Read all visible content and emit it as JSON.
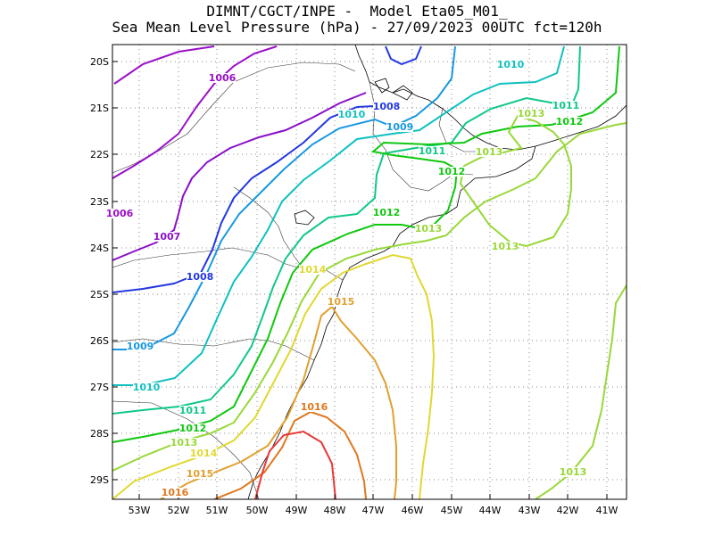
{
  "title": {
    "line1": "DIMNT/CGCT/INPE -  Model Eta05_M01_",
    "line2": "Sea Mean Level Pressure (hPa) - 27/09/2023 00UTC fct=120h"
  },
  "axes": {
    "lat_ticks": [
      "20S",
      "21S",
      "22S",
      "23S",
      "24S",
      "25S",
      "26S",
      "27S",
      "28S",
      "29S"
    ],
    "lon_ticks": [
      "53W",
      "52W",
      "51W",
      "50W",
      "49W",
      "48W",
      "47W",
      "46W",
      "45W",
      "44W",
      "43W",
      "42W",
      "41W"
    ]
  },
  "colors": {
    "c1006": "#9a10c8",
    "c1007": "#8a10c8",
    "c1008": "#2438e0",
    "c1009": "#1898e0",
    "c1010": "#10c0c0",
    "c1011": "#10c888",
    "c1012": "#10c810",
    "c1013": "#98d838",
    "c1014": "#e0d830",
    "c1015": "#e0a030",
    "c1016": "#e07820",
    "c1017": "#e83838",
    "coast": "#000000",
    "grid": "#888888"
  },
  "labels": [
    {
      "text": "1006",
      "color": "c1006"
    },
    {
      "text": "1006",
      "color": "c1006"
    },
    {
      "text": "1007",
      "color": "c1007"
    },
    {
      "text": "1008",
      "color": "c1008"
    },
    {
      "text": "1008",
      "color": "c1008"
    },
    {
      "text": "1009",
      "color": "c1009"
    },
    {
      "text": "1009",
      "color": "c1009"
    },
    {
      "text": "1010",
      "color": "c1010"
    },
    {
      "text": "1010",
      "color": "c1010"
    },
    {
      "text": "1010",
      "color": "c1010"
    },
    {
      "text": "1011",
      "color": "c1011"
    },
    {
      "text": "1011",
      "color": "c1011"
    },
    {
      "text": "1011",
      "color": "c1011"
    },
    {
      "text": "1012",
      "color": "c1012"
    },
    {
      "text": "1012",
      "color": "c1012"
    },
    {
      "text": "1012",
      "color": "c1012"
    },
    {
      "text": "1012",
      "color": "c1012"
    },
    {
      "text": "1013",
      "color": "c1013"
    },
    {
      "text": "1013",
      "color": "c1013"
    },
    {
      "text": "1013",
      "color": "c1013"
    },
    {
      "text": "1013",
      "color": "c1013"
    },
    {
      "text": "1013",
      "color": "c1013"
    },
    {
      "text": "1013",
      "color": "c1013"
    },
    {
      "text": "1014",
      "color": "c1014"
    },
    {
      "text": "1014",
      "color": "c1014"
    },
    {
      "text": "1015",
      "color": "c1015"
    },
    {
      "text": "1015",
      "color": "c1015"
    },
    {
      "text": "1016",
      "color": "c1016"
    },
    {
      "text": "1016",
      "color": "c1016"
    }
  ]
}
